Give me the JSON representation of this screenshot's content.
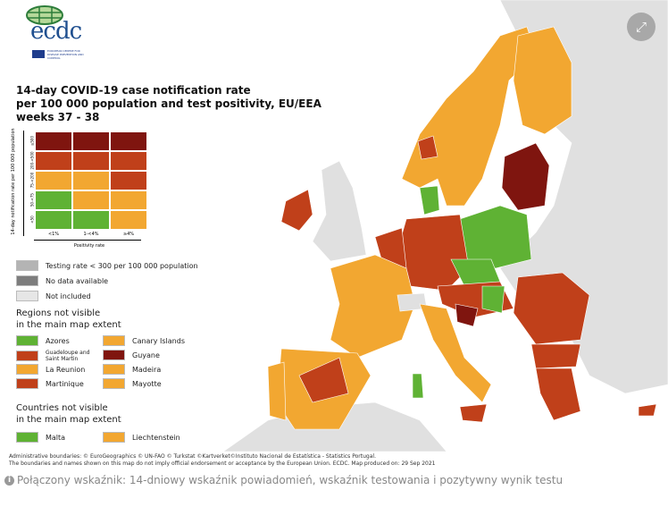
{
  "logo": {
    "text": "ecdc",
    "subtext": "EUROPEAN CENTRE FOR DISEASE PREVENTION AND CONTROL"
  },
  "title": {
    "line1": "14-day COVID-19 case notification rate",
    "line2": "per 100 000 population and test positivity, EU/EEA",
    "line3": "weeks 37 - 38"
  },
  "matrix": {
    "y_label": "14-day notification rate per 100 000 population",
    "x_label": "Positivity rate",
    "row_labels": [
      "≥500",
      "200-<500",
      "75-<200",
      "50-<75",
      "<50"
    ],
    "col_labels": [
      "<1%",
      "1-<4%",
      "≥4%"
    ],
    "cells": [
      [
        "#7f150f",
        "#7f150f",
        "#7f150f"
      ],
      [
        "#c0401a",
        "#c0401a",
        "#c0401a"
      ],
      [
        "#f2a731",
        "#f2a731",
        "#c0401a"
      ],
      [
        "#5fb234",
        "#f2a731",
        "#f2a731"
      ],
      [
        "#5fb234",
        "#5fb234",
        "#f2a731"
      ]
    ]
  },
  "legend": {
    "status": [
      {
        "label": "Testing rate < 300 per 100 000 population",
        "color": "#b4b4b4"
      },
      {
        "label": "No data available",
        "color": "#7d7d7d"
      },
      {
        "label": "Not included",
        "color": "#e6e6e6"
      }
    ],
    "regions_heading": [
      "Regions not visible",
      "in the main map extent"
    ],
    "regions": [
      {
        "label": "Azores",
        "color": "#5fb234"
      },
      {
        "label": "Canary Islands",
        "color": "#f2a731"
      },
      {
        "label": "Guadeloupe and Saint Martin",
        "color": "#c0401a"
      },
      {
        "label": "Guyane",
        "color": "#7f150f"
      },
      {
        "label": "La Reunion",
        "color": "#f2a731"
      },
      {
        "label": "Madeira",
        "color": "#f2a731"
      },
      {
        "label": "Martinique",
        "color": "#c0401a"
      },
      {
        "label": "Mayotte",
        "color": "#f2a731"
      }
    ],
    "countries_heading": [
      "Countries not visible",
      "in the main map extent"
    ],
    "countries": [
      {
        "label": "Malta",
        "color": "#5fb234"
      },
      {
        "label": "Liechtenstein",
        "color": "#f2a731"
      }
    ]
  },
  "attribution": {
    "line1": "Administrative boundaries: © EuroGeographics © UN-FAO © Turkstat ©Kartverket©Instituto Nacional de Estatística - Statistics Portugal.",
    "line2": "The boundaries and names shown on this map do not imply official endorsement or acceptance by the European Union. ECDC. Map produced on: 29 Sep 2021"
  },
  "caption": "Połączony wskaźnik: 14-dniowy wskaźnik powiadomień, wskaźnik testowania i pozytywny wynik testu",
  "expand_icon": "expand-arrows-icon",
  "colors": {
    "green": "#5fb234",
    "orange": "#f2a731",
    "red": "#c0401a",
    "darkred": "#7f150f",
    "grey": "#e0e0e0"
  }
}
